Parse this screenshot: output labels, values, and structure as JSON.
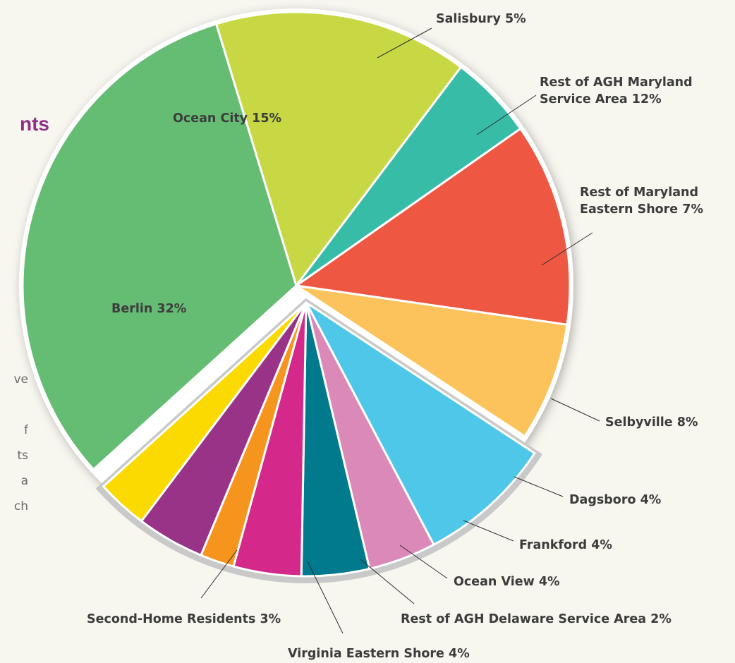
{
  "clipped_text": {
    "heading": "nts",
    "paragraph_fragments": [
      "ve",
      "",
      "f",
      "ts",
      "a",
      "ch"
    ]
  },
  "chart_data": {
    "type": "pie",
    "title": "",
    "exploded_group": "Delaware and Virginia slices separated from main pie",
    "slices": [
      {
        "name": "Ocean City",
        "label_lines": [
          "Ocean City 15%"
        ],
        "value": 15,
        "color": "#c8d845",
        "exploded": false
      },
      {
        "name": "Salisbury",
        "label_lines": [
          "Salisbury 5%"
        ],
        "value": 5,
        "color": "#36bca7",
        "exploded": false
      },
      {
        "name": "Rest of AGH Maryland Service Area",
        "label_lines": [
          "Rest of AGH Maryland",
          "Service Area 12%"
        ],
        "value": 12,
        "color": "#ee5842",
        "exploded": false
      },
      {
        "name": "Rest of Maryland Eastern Shore",
        "label_lines": [
          "Rest of Maryland",
          "Eastern Shore 7%"
        ],
        "value": 7,
        "color": "#fcc25b",
        "exploded": false
      },
      {
        "name": "Selbyville",
        "label_lines": [
          "Selbyville 8%"
        ],
        "value": 8,
        "color": "#4fc7e8",
        "exploded": true
      },
      {
        "name": "Dagsboro",
        "label_lines": [
          "Dagsboro 4%"
        ],
        "value": 4,
        "color": "#da89b9",
        "exploded": true
      },
      {
        "name": "Frankford",
        "label_lines": [
          "Frankford 4%"
        ],
        "value": 4,
        "color": "#017a8d",
        "exploded": true
      },
      {
        "name": "Ocean View",
        "label_lines": [
          "Ocean View 4%"
        ],
        "value": 4,
        "color": "#d4288a",
        "exploded": true
      },
      {
        "name": "Rest of AGH Delaware Service Area",
        "label_lines": [
          "Rest of AGH Delaware Service Area 2%"
        ],
        "value": 2,
        "color": "#f5951e",
        "exploded": true
      },
      {
        "name": "Virginia Eastern Shore",
        "label_lines": [
          "Virginia Eastern Shore 4%"
        ],
        "value": 4,
        "color": "#983387",
        "exploded": true
      },
      {
        "name": "Second-Home Residents",
        "label_lines": [
          "Second-Home Residents 3%"
        ],
        "value": 3,
        "color": "#fada00",
        "exploded": true
      },
      {
        "name": "Berlin",
        "label_lines": [
          "Berlin 32%"
        ],
        "value": 32,
        "color": "#65bd74",
        "exploded": false
      }
    ]
  }
}
